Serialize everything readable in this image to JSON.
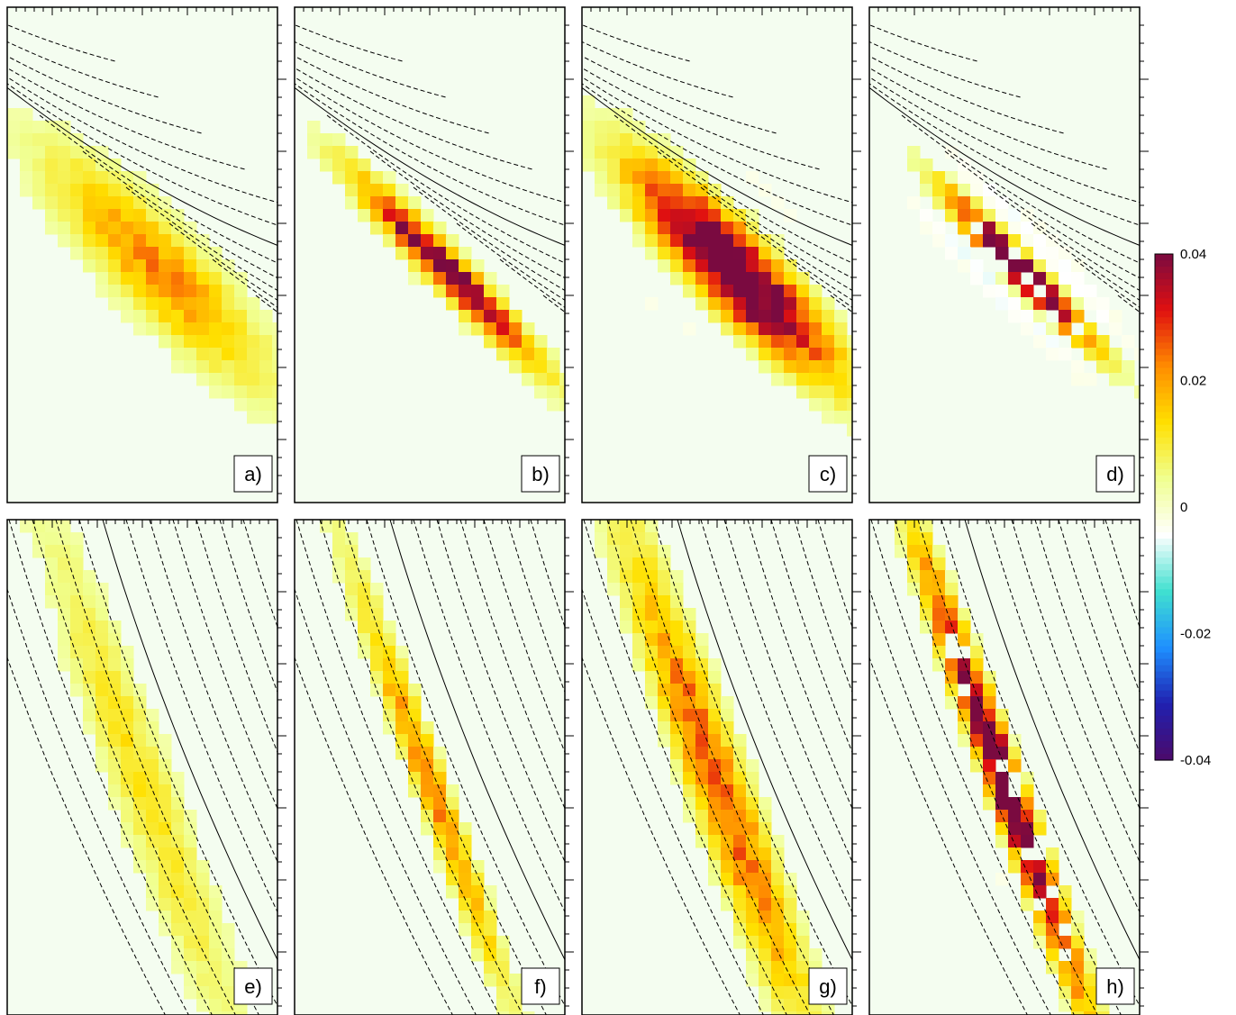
{
  "chart_data": {
    "type": "heatmap",
    "layout": "2x4 small multiples with shared colorbar",
    "colorbar": {
      "min": -0.04,
      "max": 0.04,
      "ticks": [
        "0.04",
        "0.02",
        "0",
        "-0.02",
        "-0.04"
      ],
      "colormap": [
        "#4b0a6a",
        "#2020b0",
        "#1e90ff",
        "#40e0d0",
        "#ffffff",
        "#f0ff90",
        "#ffe000",
        "#ff8c00",
        "#e01010",
        "#7a0a40"
      ]
    },
    "axes": {
      "xlabel": "",
      "ylabel": "",
      "tick_labels_shown": false,
      "grid": false
    },
    "panels": [
      {
        "label": "a)",
        "orientation": "shallow",
        "peak": 0.022,
        "spread": "wide",
        "shell": 0.0,
        "hot_center": false
      },
      {
        "label": "b)",
        "orientation": "shallow",
        "peak": 0.045,
        "spread": "narrow",
        "shell": 0.0,
        "hot_center": false
      },
      {
        "label": "c)",
        "orientation": "shallow",
        "peak": 0.05,
        "spread": "wide",
        "shell": -0.01,
        "hot_center": false
      },
      {
        "label": "d)",
        "orientation": "shallow",
        "peak": 0.05,
        "spread": "narrow",
        "shell": -0.018,
        "hot_center": true
      },
      {
        "label": "e)",
        "orientation": "steep",
        "peak": 0.012,
        "spread": "wide",
        "shell": -0.003,
        "hot_center": false
      },
      {
        "label": "f)",
        "orientation": "steep",
        "peak": 0.022,
        "spread": "narrow",
        "shell": -0.006,
        "hot_center": false
      },
      {
        "label": "g)",
        "orientation": "steep",
        "peak": 0.026,
        "spread": "wide",
        "shell": -0.008,
        "hot_center": false
      },
      {
        "label": "h)",
        "orientation": "steep",
        "peak": 0.05,
        "spread": "narrow",
        "shell": -0.01,
        "hot_center": true
      }
    ]
  }
}
